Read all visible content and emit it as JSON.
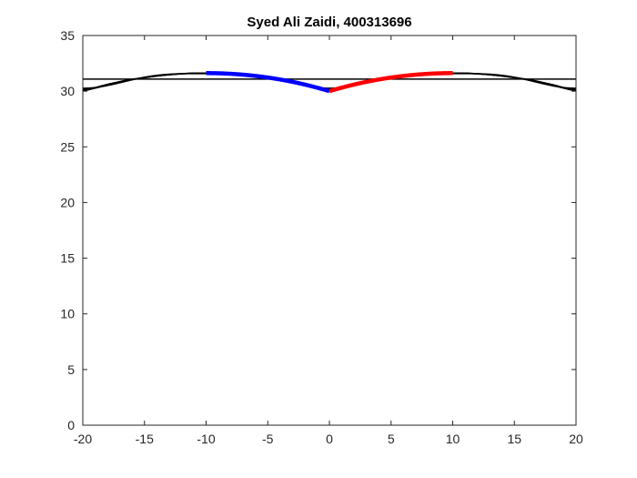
{
  "chart_data": {
    "type": "line",
    "title": "Syed Ali Zaidi, 400313696",
    "xlabel": "",
    "ylabel": "",
    "xlim": [
      -20,
      20
    ],
    "ylim": [
      0,
      35
    ],
    "x_ticks": [
      -20,
      -15,
      -10,
      -5,
      0,
      5,
      10,
      15,
      20
    ],
    "x_tick_labels": [
      "-20",
      "-15",
      "-10",
      "-5",
      "0",
      "5",
      "10",
      "15",
      "20"
    ],
    "y_ticks": [
      0,
      5,
      10,
      15,
      20,
      25,
      30,
      35
    ],
    "y_tick_labels": [
      "0",
      "5",
      "10",
      "15",
      "20",
      "25",
      "30",
      "35"
    ],
    "grid": false,
    "legend": "none",
    "box": true,
    "colors": {
      "axes": "#262626",
      "approximations": "#000000",
      "left_arc": "#0000ff",
      "right_arc": "#ff0000"
    },
    "description_model": {
      "period": 20,
      "exact_function": "y = sqrt(1000 - (|x| - 10)^2)",
      "fourier_terms_shown": [
        1,
        3,
        5,
        7,
        9,
        11
      ],
      "exact_branch_left_domain": [
        -10,
        0
      ],
      "exact_branch_right_domain": [
        0,
        10
      ]
    },
    "series": [
      {
        "role": "left_arc",
        "color": "#0000ff",
        "x_range": [
          -10,
          0
        ]
      },
      {
        "role": "right_arc",
        "color": "#ff0000",
        "x_range": [
          0,
          10
        ]
      },
      {
        "role": "approximation",
        "color": "#000000",
        "terms": 1
      },
      {
        "role": "approximation",
        "color": "#000000",
        "terms": 3
      },
      {
        "role": "approximation",
        "color": "#000000",
        "terms": 5
      },
      {
        "role": "approximation",
        "color": "#000000",
        "terms": 7
      },
      {
        "role": "approximation",
        "color": "#000000",
        "terms": 9
      },
      {
        "role": "approximation",
        "color": "#000000",
        "terms": 11
      }
    ]
  }
}
